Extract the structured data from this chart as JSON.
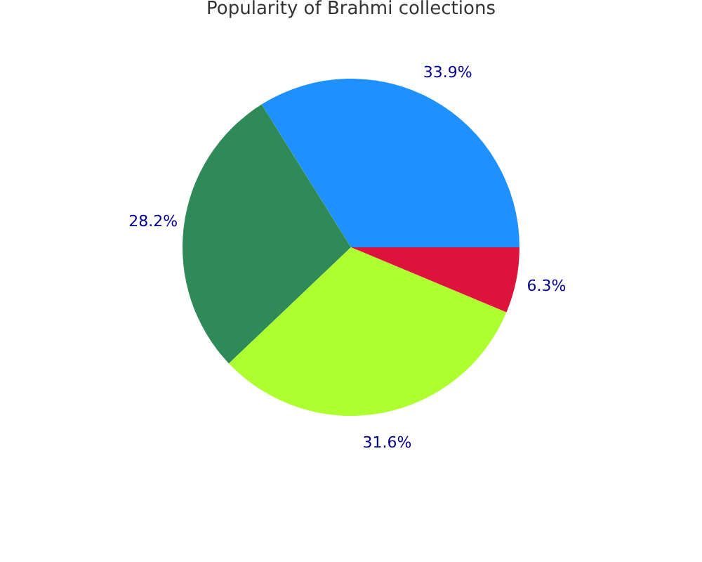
{
  "chart_data": {
    "type": "pie",
    "title": "Popularity of Brahmi collections",
    "categories": [
      null,
      null,
      null,
      null
    ],
    "values": [
      33.9,
      28.2,
      31.6,
      6.3
    ],
    "colors": [
      "#1e90ff",
      "#2e8b57",
      "#adff2f",
      "#dc143c"
    ],
    "value_labels": [
      "33.9%",
      "28.2%",
      "31.6%",
      "6.3%"
    ],
    "legend": false
  }
}
